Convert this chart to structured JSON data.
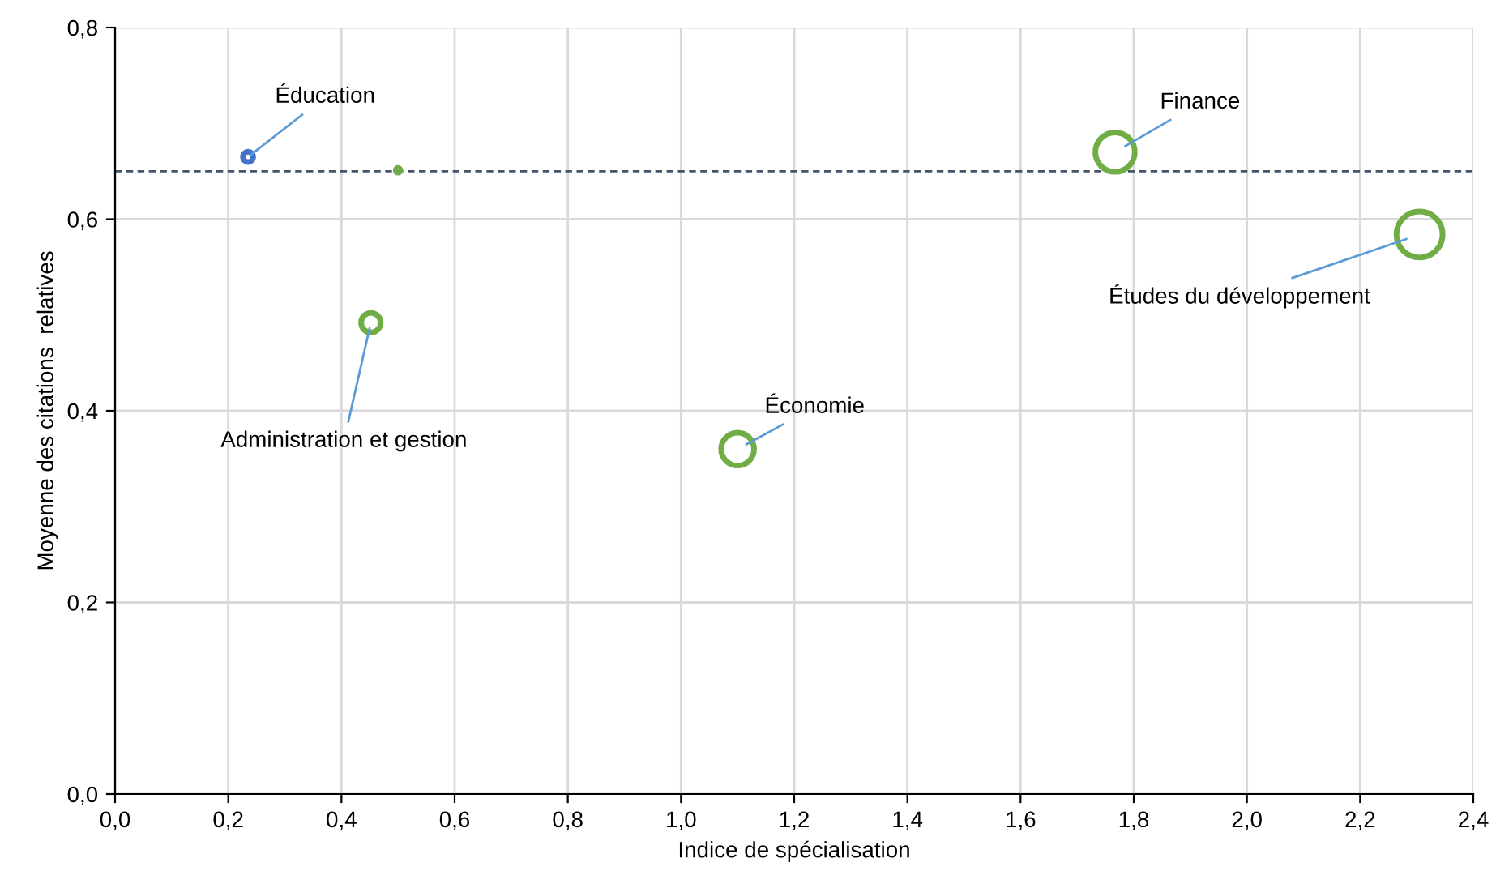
{
  "chart_data": {
    "type": "bubble",
    "xlabel": "Indice de spécialisation",
    "ylabel": "Moyenne des citations  relatives",
    "x": [
      0.235,
      0.5,
      0.452,
      1.1,
      1.767,
      2.305
    ],
    "values": [
      0.665,
      0.651,
      0.492,
      0.36,
      0.67,
      0.584
    ],
    "sizes": [
      0.05,
      0.01,
      0.18,
      0.51,
      0.73,
      1
    ],
    "colors": [
      "#4472c4",
      "#70ad47",
      "#70ad47",
      "#70ad47",
      "#70ad47",
      "#70ad47"
    ],
    "xlim": [
      0,
      2.4
    ],
    "ylim": [
      0,
      0.8
    ],
    "xticks": [
      {
        "value": 0,
        "label": "0,0"
      },
      {
        "value": 0.2,
        "label": "0,2"
      },
      {
        "value": 0.4,
        "label": "0,4"
      },
      {
        "value": 0.6,
        "label": "0,6"
      },
      {
        "value": 0.8,
        "label": "0,8"
      },
      {
        "value": 1.0,
        "label": "1,0"
      },
      {
        "value": 1.2,
        "label": "1,2"
      },
      {
        "value": 1.4,
        "label": "1,4"
      },
      {
        "value": 1.6,
        "label": "1,6"
      },
      {
        "value": 1.8,
        "label": "1,8"
      },
      {
        "value": 2.0,
        "label": "2,0"
      },
      {
        "value": 2.2,
        "label": "2,2"
      },
      {
        "value": 2.4,
        "label": "2,4"
      }
    ],
    "yticks": [
      {
        "value": 0,
        "label": "0,0"
      },
      {
        "value": 0.2,
        "label": "0,2"
      },
      {
        "value": 0.4,
        "label": "0,4"
      },
      {
        "value": 0.6,
        "label": "0,6"
      },
      {
        "value": 0.8,
        "label": "0,8"
      }
    ],
    "grid": true,
    "ref_lines": [
      {
        "axis": "y",
        "value": 0.65,
        "color": "#44546a",
        "line_style": "dashed"
      }
    ],
    "annotations": [
      {
        "text": "Éducation",
        "x": 0.235,
        "y": 0.665
      },
      {
        "text": "Administration et gestion",
        "x": 0.452,
        "y": 0.492
      },
      {
        "text": "Économie",
        "x": 1.1,
        "y": 0.36
      },
      {
        "text": "Finance",
        "x": 1.767,
        "y": 0.67
      },
      {
        "text": "Études du développement",
        "x": 2.305,
        "y": 0.584
      }
    ]
  }
}
